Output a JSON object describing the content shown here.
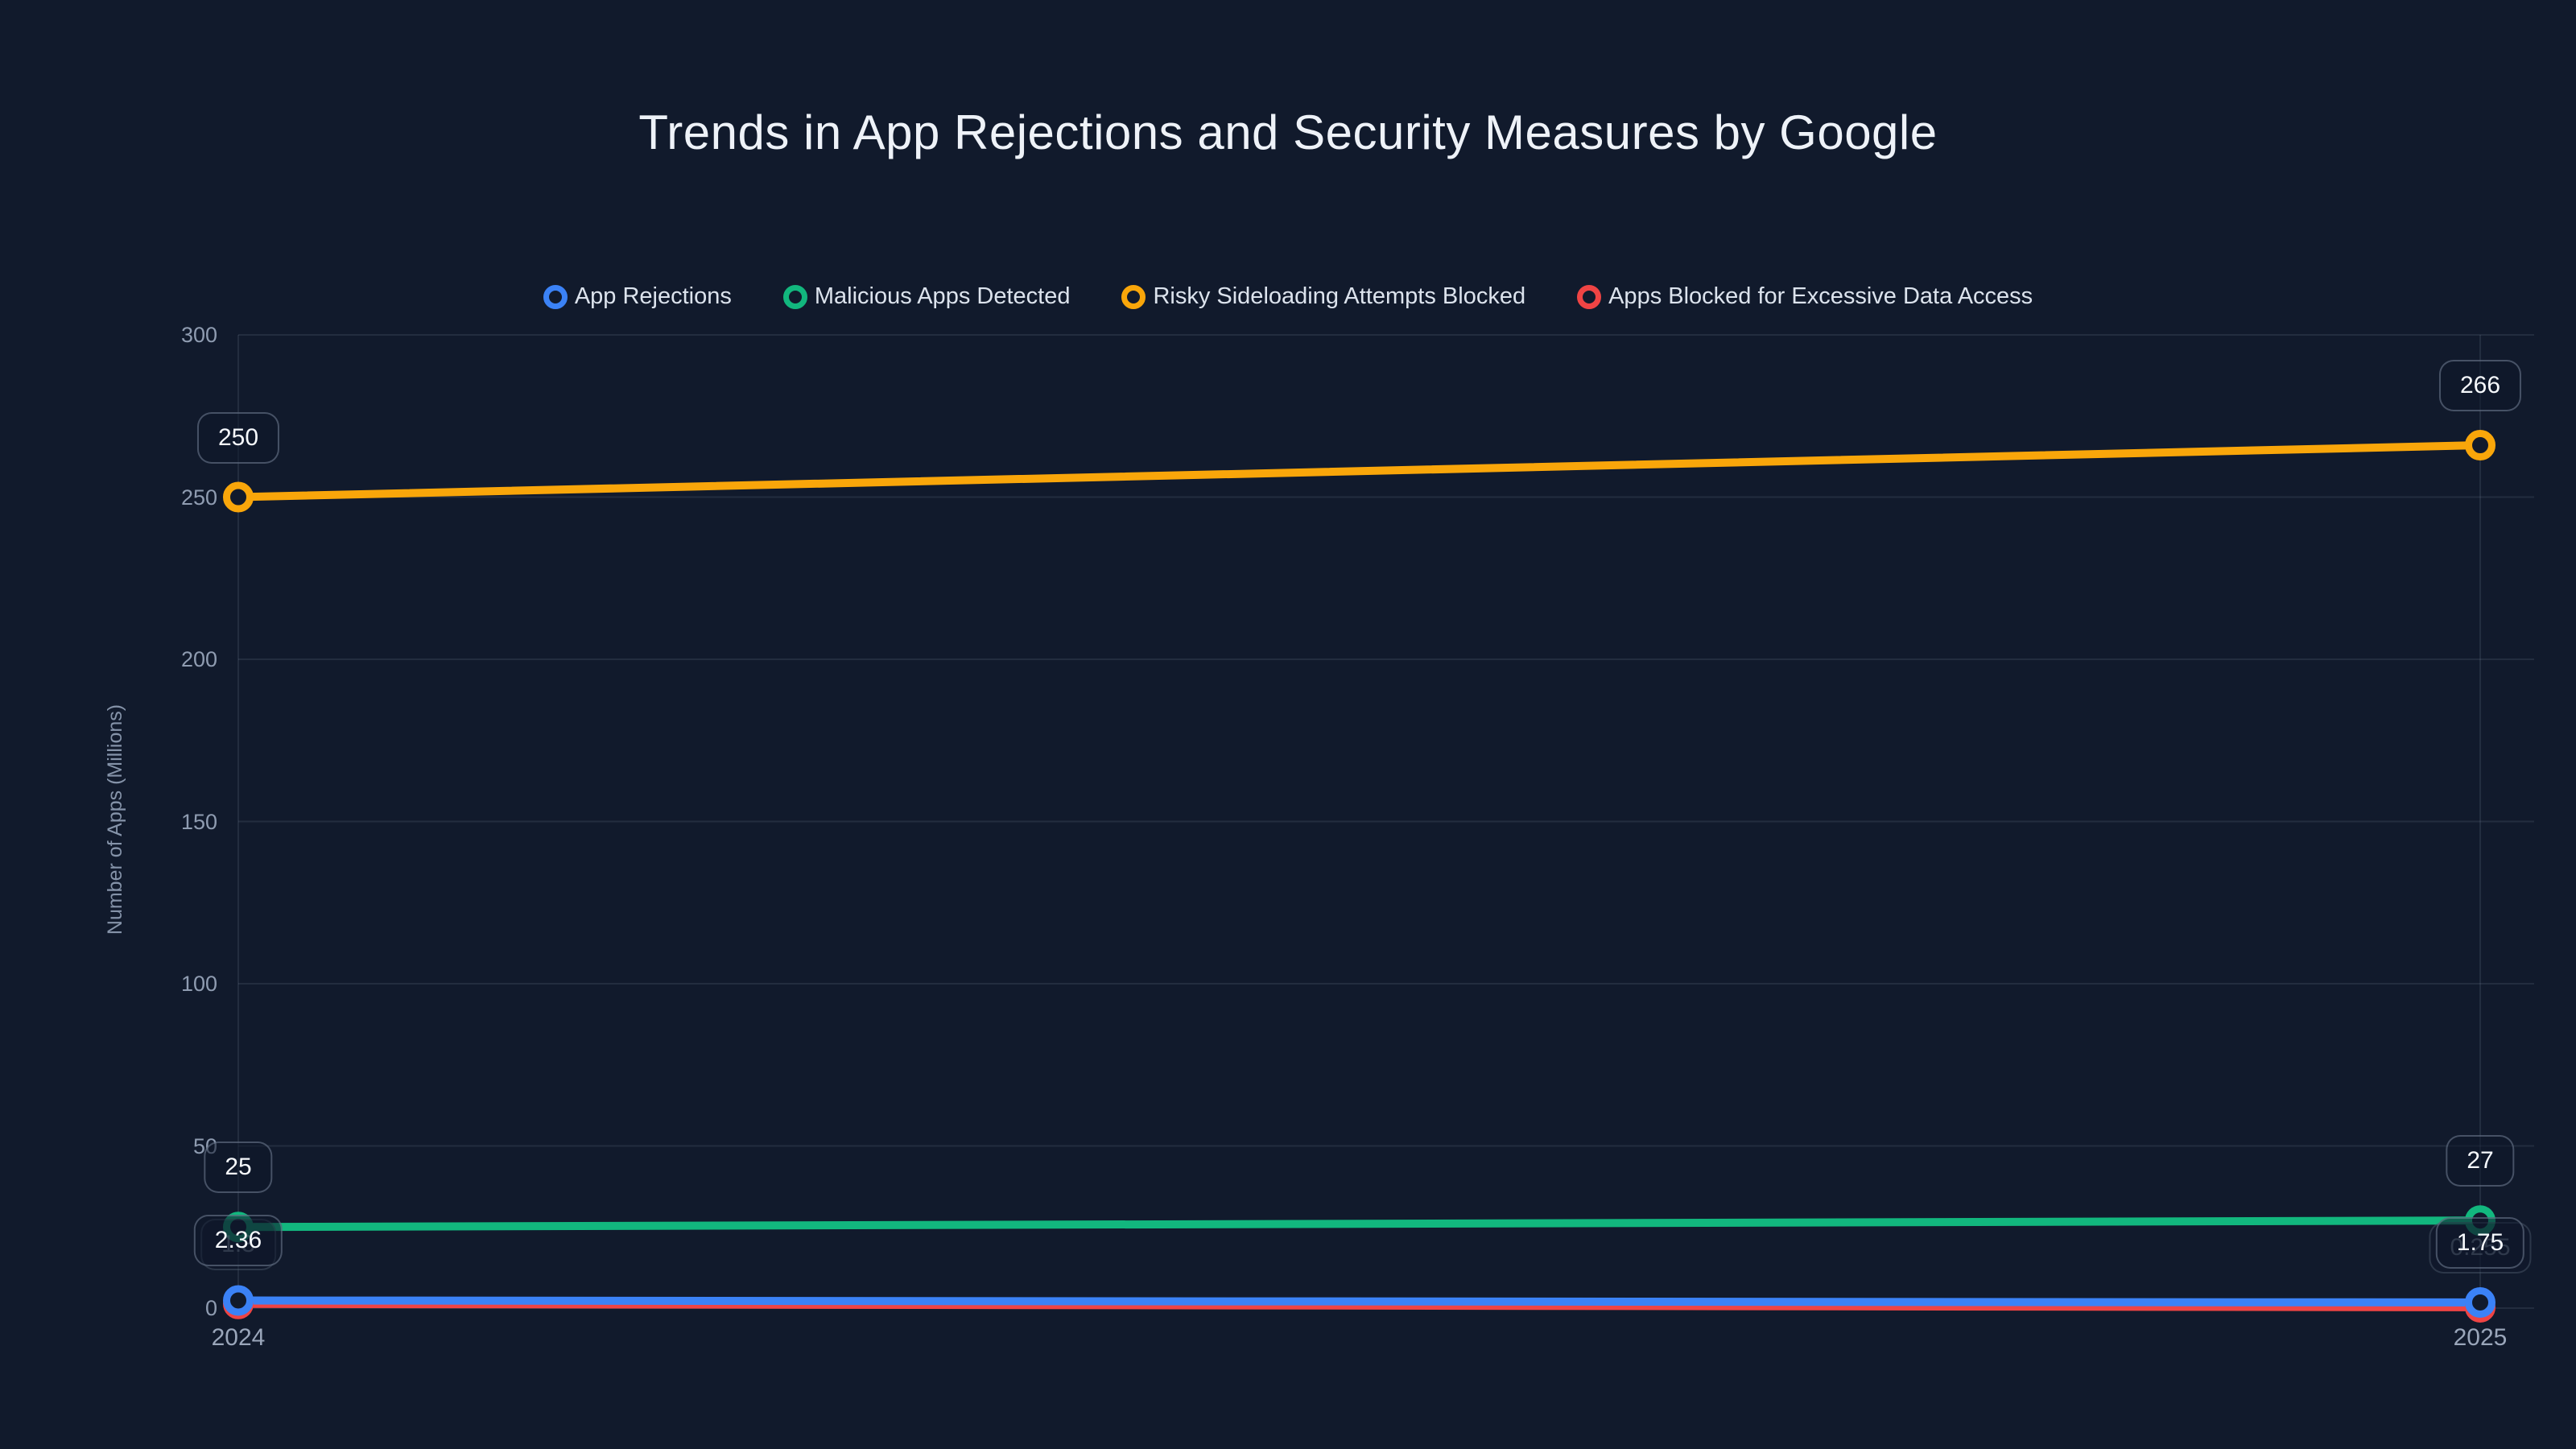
{
  "title": "Trends in App Rejections and Security Measures by Google",
  "colors": {
    "background": "#111a2c",
    "grid": "rgba(148,163,184,0.14)",
    "tick_text": "#8f9cb1",
    "title_text": "#eef2f8",
    "legend_text": "#dce3ed",
    "label_box_border": "rgba(148,163,184,0.42)"
  },
  "chart_data": {
    "type": "line",
    "x": [
      "2024",
      "2025"
    ],
    "xlabel": "",
    "ylabel": "Number of Apps (Millions)",
    "ylim": [
      0,
      300
    ],
    "yticks": [
      0,
      50,
      100,
      150,
      200,
      250,
      300
    ],
    "grid": true,
    "legend_position": "top-center",
    "series": [
      {
        "name": "App Rejections",
        "color": "#3b82f6",
        "values": [
          2.36,
          1.75
        ],
        "point_labels": [
          "2.36",
          "1.75"
        ],
        "labels_hidden": [
          false,
          false
        ]
      },
      {
        "name": "Malicious Apps Detected",
        "color": "#12b77e",
        "values": [
          25,
          27
        ],
        "point_labels": [
          "25",
          "27"
        ],
        "labels_hidden": [
          false,
          false
        ]
      },
      {
        "name": "Risky Sideloading Attempts Blocked",
        "color": "#f9a60a",
        "values": [
          250,
          266
        ],
        "point_labels": [
          "250",
          "266"
        ],
        "labels_hidden": [
          false,
          false
        ]
      },
      {
        "name": "Apps Blocked for Excessive Data Access",
        "color": "#ef4444",
        "values": [
          1.3,
          0.255
        ],
        "point_labels": [
          "1.3",
          "0.255"
        ],
        "labels_hidden": [
          true,
          true
        ]
      }
    ]
  }
}
